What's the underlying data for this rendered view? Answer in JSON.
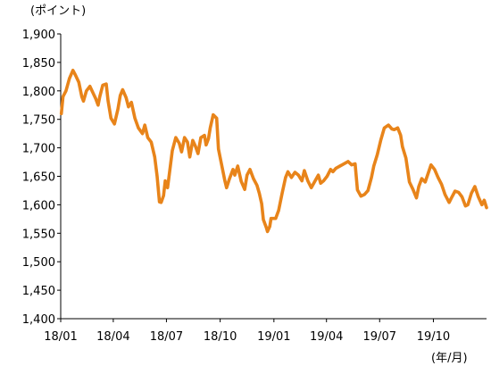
{
  "chart_data": {
    "type": "line",
    "title": "",
    "y_unit_label": "(ポイント)",
    "x_unit_label": "(年/月)",
    "xlabel": "",
    "ylabel": "",
    "ylim": [
      1400,
      1900
    ],
    "y_ticks": [
      1400,
      1450,
      1500,
      1550,
      1600,
      1650,
      1700,
      1750,
      1800,
      1850,
      1900
    ],
    "y_tick_labels": [
      "1,400",
      "1,450",
      "1,500",
      "1,550",
      "1,600",
      "1,650",
      "1,700",
      "1,750",
      "1,800",
      "1,850",
      "1,900"
    ],
    "x_range": [
      "2018-01-01",
      "2019-12-31"
    ],
    "x_ticks": [
      "2018-01-01",
      "2018-04-01",
      "2018-07-01",
      "2018-10-01",
      "2019-01-01",
      "2019-04-01",
      "2019-07-01",
      "2019-10-01"
    ],
    "x_tick_labels": [
      "18/01",
      "18/04",
      "18/07",
      "18/10",
      "19/01",
      "19/04",
      "19/07",
      "19/10"
    ],
    "grid": false,
    "legend": "none",
    "colors": {
      "line": "#E8841A",
      "axis": "#000000"
    },
    "series": [
      {
        "x": [
          "2018-01-02",
          "2018-01-05",
          "2018-01-10",
          "2018-01-16",
          "2018-01-22",
          "2018-01-26",
          "2018-02-01",
          "2018-02-06",
          "2018-02-09",
          "2018-02-14",
          "2018-02-20",
          "2018-02-26",
          "2018-03-02",
          "2018-03-06",
          "2018-03-09",
          "2018-03-14",
          "2018-03-20",
          "2018-03-23",
          "2018-03-28",
          "2018-04-03",
          "2018-04-09",
          "2018-04-13",
          "2018-04-17",
          "2018-04-23",
          "2018-04-27",
          "2018-05-02",
          "2018-05-08",
          "2018-05-14",
          "2018-05-21",
          "2018-05-25",
          "2018-05-30",
          "2018-06-05",
          "2018-06-11",
          "2018-06-15",
          "2018-06-19",
          "2018-06-22",
          "2018-06-26",
          "2018-06-29",
          "2018-07-03",
          "2018-07-06",
          "2018-07-11",
          "2018-07-17",
          "2018-07-23",
          "2018-07-27",
          "2018-08-01",
          "2018-08-06",
          "2018-08-10",
          "2018-08-15",
          "2018-08-20",
          "2018-08-24",
          "2018-08-29",
          "2018-09-04",
          "2018-09-07",
          "2018-09-11",
          "2018-09-14",
          "2018-09-19",
          "2018-09-25",
          "2018-09-28",
          "2018-10-03",
          "2018-10-09",
          "2018-10-12",
          "2018-10-17",
          "2018-10-23",
          "2018-10-26",
          "2018-10-31",
          "2018-11-06",
          "2018-11-12",
          "2018-11-16",
          "2018-11-21",
          "2018-11-27",
          "2018-12-03",
          "2018-12-07",
          "2018-12-11",
          "2018-12-14",
          "2018-12-19",
          "2018-12-21",
          "2018-12-25",
          "2018-12-27",
          "2019-01-04",
          "2019-01-09",
          "2019-01-15",
          "2019-01-21",
          "2019-01-25",
          "2019-01-31",
          "2019-02-06",
          "2019-02-12",
          "2019-02-18",
          "2019-02-22",
          "2019-02-28",
          "2019-03-06",
          "2019-03-12",
          "2019-03-18",
          "2019-03-22",
          "2019-03-27",
          "2019-04-02",
          "2019-04-08",
          "2019-04-12",
          "2019-04-17",
          "2019-04-24",
          "2019-05-08",
          "2019-05-14",
          "2019-05-20",
          "2019-05-24",
          "2019-05-30",
          "2019-06-05",
          "2019-06-11",
          "2019-06-17",
          "2019-06-21",
          "2019-06-27",
          "2019-07-03",
          "2019-07-09",
          "2019-07-16",
          "2019-07-22",
          "2019-07-26",
          "2019-08-01",
          "2019-08-06",
          "2019-08-09",
          "2019-08-15",
          "2019-08-21",
          "2019-08-27",
          "2019-09-02",
          "2019-09-06",
          "2019-09-11",
          "2019-09-17",
          "2019-09-23",
          "2019-09-27",
          "2019-10-03",
          "2019-10-09",
          "2019-10-15",
          "2019-10-21",
          "2019-10-28",
          "2019-11-01",
          "2019-11-07",
          "2019-11-13",
          "2019-11-19",
          "2019-11-25",
          "2019-11-29",
          "2019-12-05",
          "2019-12-11",
          "2019-12-17",
          "2019-12-23",
          "2019-12-27",
          "2019-12-31"
        ],
        "values": [
          1760,
          1790,
          1800,
          1822,
          1836,
          1828,
          1815,
          1790,
          1782,
          1800,
          1808,
          1795,
          1786,
          1775,
          1790,
          1810,
          1812,
          1783,
          1752,
          1742,
          1768,
          1792,
          1802,
          1788,
          1772,
          1780,
          1752,
          1735,
          1725,
          1740,
          1718,
          1710,
          1684,
          1650,
          1605,
          1604,
          1616,
          1642,
          1630,
          1654,
          1695,
          1718,
          1708,
          1693,
          1718,
          1710,
          1684,
          1713,
          1702,
          1690,
          1718,
          1722,
          1705,
          1716,
          1735,
          1758,
          1752,
          1698,
          1673,
          1642,
          1630,
          1646,
          1662,
          1652,
          1668,
          1641,
          1627,
          1652,
          1662,
          1646,
          1634,
          1620,
          1602,
          1574,
          1560,
          1553,
          1562,
          1576,
          1576,
          1590,
          1620,
          1648,
          1658,
          1648,
          1657,
          1652,
          1642,
          1660,
          1642,
          1630,
          1641,
          1652,
          1638,
          1642,
          1650,
          1662,
          1658,
          1664,
          1668,
          1676,
          1670,
          1672,
          1626,
          1615,
          1618,
          1625,
          1648,
          1668,
          1688,
          1714,
          1735,
          1740,
          1733,
          1732,
          1735,
          1722,
          1702,
          1682,
          1640,
          1627,
          1612,
          1632,
          1646,
          1640,
          1658,
          1670,
          1662,
          1648,
          1636,
          1618,
          1604,
          1612,
          1624,
          1622,
          1614,
          1598,
          1600,
          1620,
          1632,
          1614,
          1600,
          1608,
          1595
        ]
      }
    ]
  }
}
